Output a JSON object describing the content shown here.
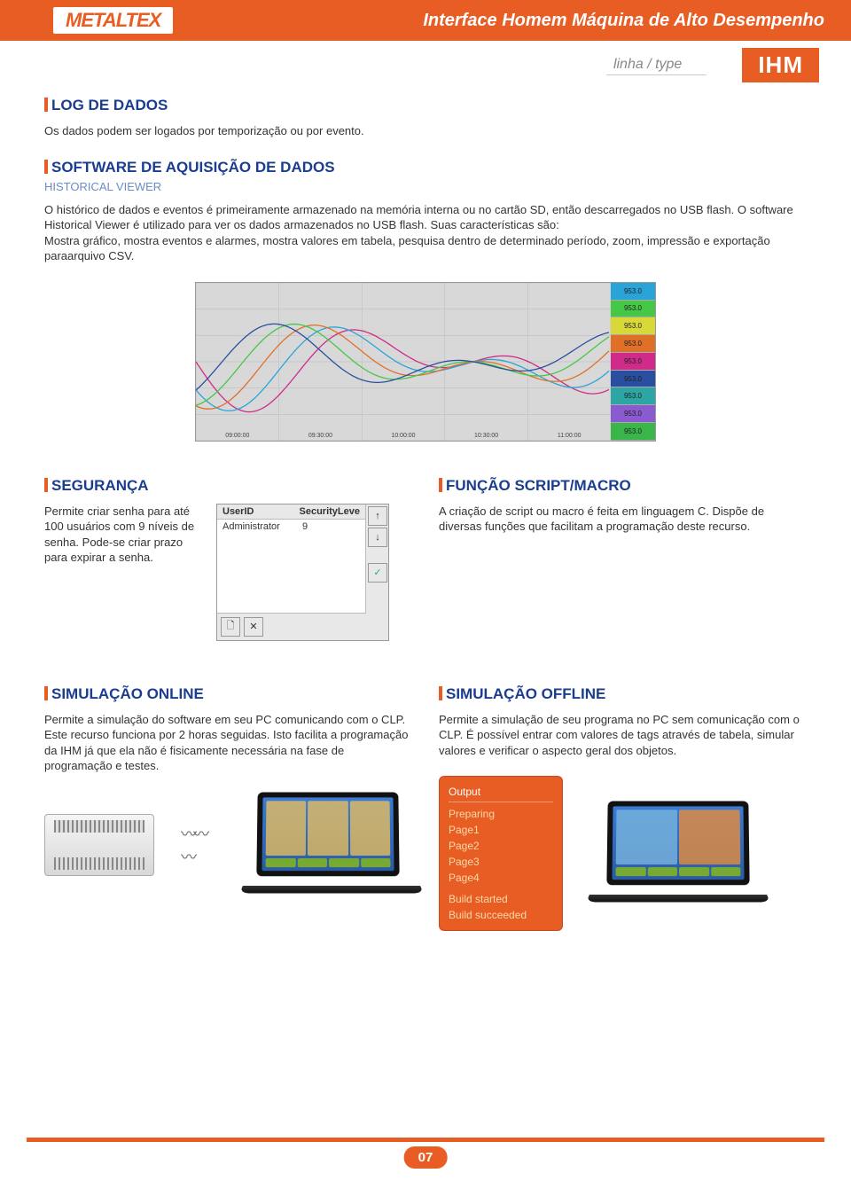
{
  "header": {
    "logo_text": "METALTEX",
    "title": "Interface Homem Máquina de Alto Desempenho",
    "linha_label": "linha / type",
    "badge": "IHM"
  },
  "sections": {
    "log": {
      "title": "LOG DE DADOS",
      "body": "Os dados podem ser logados por temporização ou por evento."
    },
    "software": {
      "title": "SOFTWARE DE AQUISIÇÃO DE DADOS",
      "subtitle": "HISTORICAL VIEWER",
      "body": "O histórico de dados e eventos é primeiramente armazenado na memória interna ou no cartão SD, então descarregados no USB flash. O software Historical Viewer é utilizado para ver os dados armazenados no USB flash. Suas características são:\nMostra gráfico, mostra eventos e alarmes, mostra valores em tabela, pesquisa dentro de determinado período, zoom, impressão e exportação paraarquivo CSV."
    },
    "security": {
      "title": "SEGURANÇA",
      "body": "Permite criar senha para até 100 usuários com 9 níveis de senha. Pode-se criar prazo para expirar a senha.",
      "panel": {
        "col1": "UserID",
        "col2": "SecurityLeve",
        "row_user": "Administrator",
        "row_level": "9",
        "btn_up": "↑",
        "btn_down": "↓",
        "btn_check": "✓",
        "btn_new": "🗋",
        "btn_del": "✕"
      }
    },
    "script": {
      "title": "FUNÇÃO SCRIPT/MACRO",
      "body": "A criação de script ou macro é feita em linguagem C. Dispõe de diversas funções que facilitam a programação deste recurso."
    },
    "sim_online": {
      "title": "SIMULAÇÃO ONLINE",
      "body": "Permite a simulação do software em seu PC comunicando com o CLP. Este recurso funciona por 2 horas seguidas. Isto facilita a programação da IHM já que ela não é fisicamente necessária na fase de programação e testes."
    },
    "sim_offline": {
      "title": "SIMULAÇÃO OFFLINE",
      "body": "Permite a simulação de seu programa no PC sem comunicação com o CLP. É possível entrar com valores de tags através de tabela, simular valores e verificar o aspecto geral dos objetos.",
      "output": {
        "header": "Output",
        "lines": [
          "Preparing",
          "Page1",
          "Page2",
          "Page3",
          "Page4"
        ],
        "status1": "Build started",
        "status2": "Build succeeded"
      }
    }
  },
  "chart": {
    "legend_value": "953.0",
    "legend_colors": [
      "#2aa3d9",
      "#45c845",
      "#d8d838",
      "#e07028",
      "#d02a8a",
      "#2a4fa0",
      "#2da5a5",
      "#8a5ad0",
      "#3ab54a"
    ],
    "wave_colors": [
      "#d02a8a",
      "#2aa3d9",
      "#e07028",
      "#45c845",
      "#2a4fa0"
    ],
    "xlabels": [
      "09:00:00",
      "09:30:00",
      "10:00:00",
      "10:30:00",
      "11:00:00"
    ],
    "grid_color": "#b8b8b8"
  },
  "page_number": "07"
}
